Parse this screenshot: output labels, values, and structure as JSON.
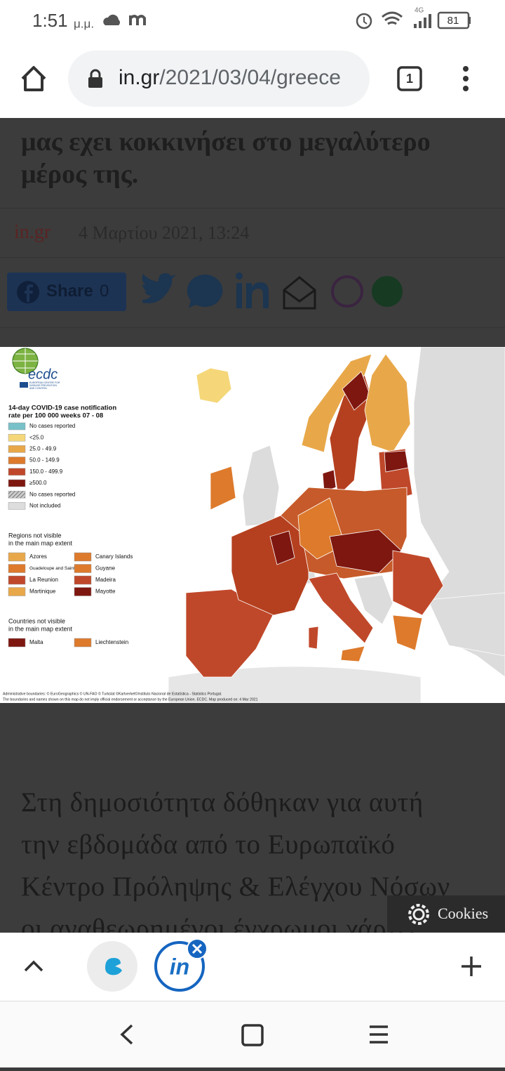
{
  "status_bar": {
    "time": "1:51",
    "period": "μ.μ.",
    "network": "4G",
    "battery": "81"
  },
  "browser": {
    "url_host": "in.gr",
    "url_path": "/2021/03/04/greece",
    "tab_count": "1"
  },
  "article": {
    "headline": [
      "μας εχει κοκκινήσει στο μεγαλύτερο",
      "μέρος της."
    ],
    "source": "in.gr",
    "date": "4 Μαρτίου 2021, 13:24",
    "share_label": "Share",
    "share_count": "0",
    "body": [
      "Στη δημοσιότητα δόθηκαν για αυτή",
      "την εβδομάδα από το Ευρωπαϊκό",
      "Κέντρο Πρόληψης & Ελέγχου Νόσων",
      "οι αναθεωρημένοι έγχρωμοι χάρτες"
    ]
  },
  "map": {
    "logo": "ecdc",
    "logo_subtitle": "EUROPEAN CENTRE FOR DISEASE PREVENTION AND CONTROL",
    "legend_title": [
      "14-day COVID-19 case notification",
      "rate per 100 000 weeks  07 - 08"
    ],
    "legend": [
      {
        "label": "No cases reported",
        "color": "#79c1c9"
      },
      {
        "label": "<25.0",
        "color": "#f5d77a"
      },
      {
        "label": "25.0 - 49.9",
        "color": "#e8a84a"
      },
      {
        "label": "50.0 - 149.9",
        "color": "#dd7a2c"
      },
      {
        "label": "150.0 - 499.9",
        "color": "#c0482a"
      },
      {
        "label": "≥500.0",
        "color": "#7e1710"
      },
      {
        "label": "No cases reported",
        "pattern": "hatched"
      },
      {
        "label": "Not included",
        "color": "#dddddd"
      }
    ],
    "regions_title": [
      "Regions not visible",
      "in the main map extent"
    ],
    "regions": [
      {
        "name": "Azores",
        "color": "#e8a84a"
      },
      {
        "name": "Canary Islands",
        "color": "#dd7a2c"
      },
      {
        "name": "Guadeloupe and Saint Martin",
        "color": "#dd7a2c"
      },
      {
        "name": "Guyane",
        "color": "#dd7a2c"
      },
      {
        "name": "La Reunion",
        "color": "#c0482a"
      },
      {
        "name": "Madeira",
        "color": "#c0482a"
      },
      {
        "name": "Martinique",
        "color": "#e8a84a"
      },
      {
        "name": "Mayotte",
        "color": "#7e1710"
      }
    ],
    "countries_title": [
      "Countries not visible",
      "in the main map extent"
    ],
    "countries": [
      {
        "name": "Malta",
        "color": "#7e1710"
      },
      {
        "name": "Liechtenstein",
        "color": "#dd7a2c"
      }
    ],
    "credits": [
      "Administrative boundaries: © EuroGeographics © UN-FAO © Turkstat ©Kartverket©Instituto Nacional de Estatística - Statistics Portugal.",
      "The boundaries and names shown on this map do not imply official endorsement or acceptance by the European Union. ECDC. Map produced on: 4 Mar 2021"
    ]
  },
  "cookies": "Cookies",
  "tab_strip": {
    "active_tab": "in"
  }
}
